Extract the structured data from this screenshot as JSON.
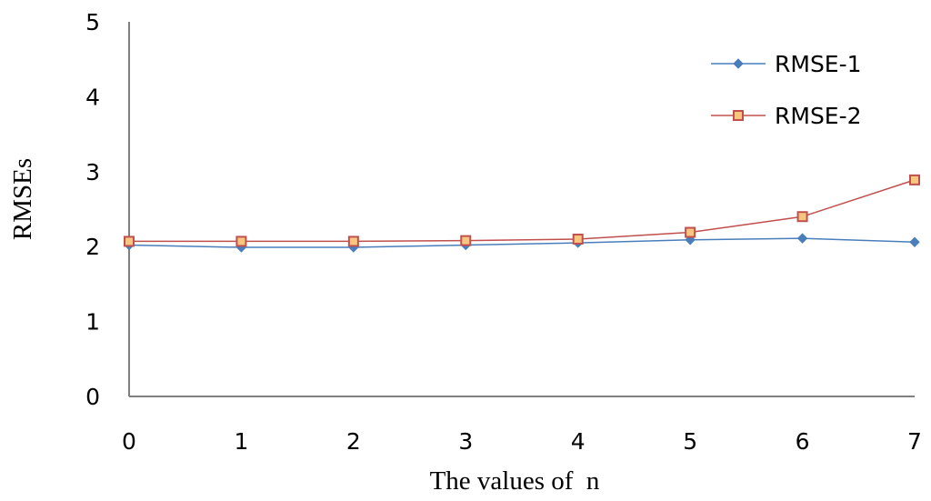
{
  "chart_data": {
    "type": "line",
    "title": "",
    "xlabel": "The values of  n",
    "ylabel": "RMSEs",
    "x": [
      0,
      1,
      2,
      3,
      4,
      5,
      6,
      7
    ],
    "xlim": [
      0,
      7
    ],
    "ylim": [
      0,
      5
    ],
    "x_ticks": [
      "0",
      "1",
      "2",
      "3",
      "4",
      "5",
      "6",
      "7"
    ],
    "y_ticks": [
      "0",
      "1",
      "2",
      "3",
      "4",
      "5"
    ],
    "grid": false,
    "legend_position": "top-right",
    "series": [
      {
        "name": "RMSE-1",
        "values": [
          2.02,
          1.99,
          1.99,
          2.02,
          2.05,
          2.09,
          2.11,
          2.06
        ],
        "color": "#4a7ebb",
        "marker": "diamond"
      },
      {
        "name": "RMSE-2",
        "values": [
          2.07,
          2.07,
          2.07,
          2.08,
          2.1,
          2.19,
          2.4,
          2.89
        ],
        "color": "#c0504d",
        "marker_fill": "#f9c680",
        "marker": "square"
      }
    ]
  }
}
